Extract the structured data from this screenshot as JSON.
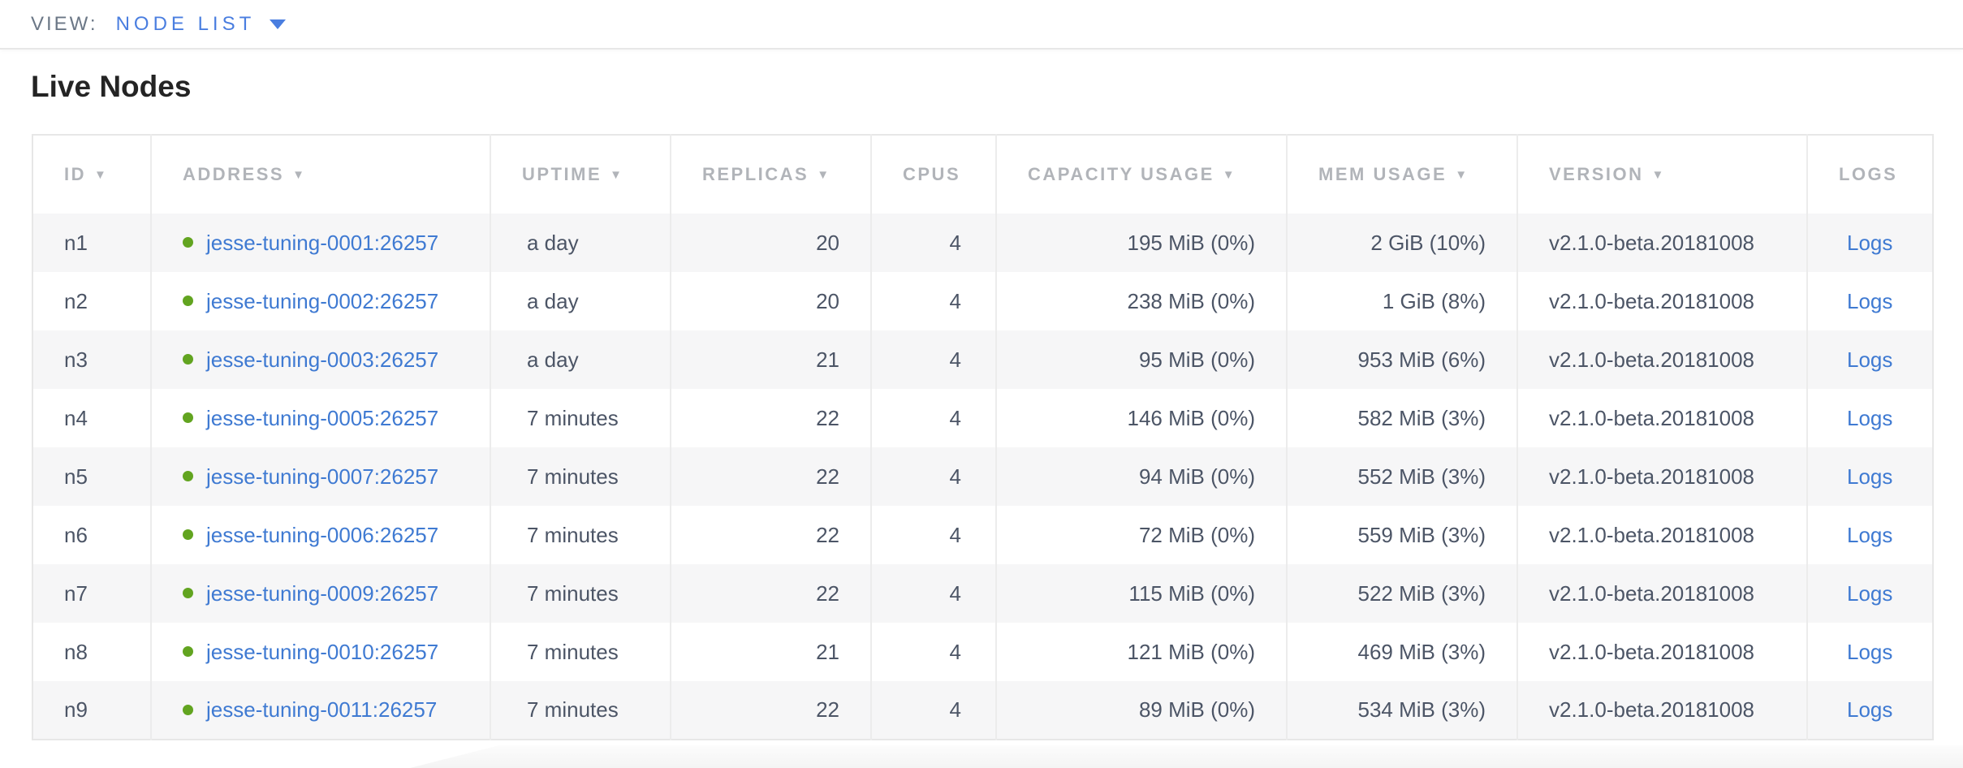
{
  "view_bar": {
    "label": "VIEW:",
    "selected": "NODE LIST"
  },
  "page": {
    "title": "Live Nodes"
  },
  "icons": {
    "sort_arrow": "▼",
    "chevron_down": "caret-down",
    "live_status": "green-dot"
  },
  "colors": {
    "accent_blue": "#4a7ee0",
    "link_blue": "#3f7ad2",
    "live_green": "#62a420",
    "header_gray": "#b1b4b9",
    "body_text": "#4c5566"
  },
  "table": {
    "columns": [
      {
        "key": "id",
        "label": "ID",
        "sortable": true
      },
      {
        "key": "address",
        "label": "ADDRESS",
        "sortable": true
      },
      {
        "key": "uptime",
        "label": "UPTIME",
        "sortable": true
      },
      {
        "key": "replicas",
        "label": "REPLICAS",
        "sortable": true
      },
      {
        "key": "cpus",
        "label": "CPUS",
        "sortable": false
      },
      {
        "key": "capacity",
        "label": "CAPACITY USAGE",
        "sortable": true
      },
      {
        "key": "mem",
        "label": "MEM USAGE",
        "sortable": true
      },
      {
        "key": "version",
        "label": "VERSION",
        "sortable": true
      },
      {
        "key": "logs",
        "label": "LOGS",
        "sortable": false
      }
    ],
    "rows": [
      {
        "id": "n1",
        "status": "live",
        "address": "jesse-tuning-0001:26257",
        "uptime": "a day",
        "replicas": "20",
        "cpus": "4",
        "capacity": "195 MiB (0%)",
        "mem": "2 GiB (10%)",
        "version": "v2.1.0-beta.20181008",
        "logs": "Logs"
      },
      {
        "id": "n2",
        "status": "live",
        "address": "jesse-tuning-0002:26257",
        "uptime": "a day",
        "replicas": "20",
        "cpus": "4",
        "capacity": "238 MiB (0%)",
        "mem": "1 GiB (8%)",
        "version": "v2.1.0-beta.20181008",
        "logs": "Logs"
      },
      {
        "id": "n3",
        "status": "live",
        "address": "jesse-tuning-0003:26257",
        "uptime": "a day",
        "replicas": "21",
        "cpus": "4",
        "capacity": "95 MiB (0%)",
        "mem": "953 MiB (6%)",
        "version": "v2.1.0-beta.20181008",
        "logs": "Logs"
      },
      {
        "id": "n4",
        "status": "live",
        "address": "jesse-tuning-0005:26257",
        "uptime": "7 minutes",
        "replicas": "22",
        "cpus": "4",
        "capacity": "146 MiB (0%)",
        "mem": "582 MiB (3%)",
        "version": "v2.1.0-beta.20181008",
        "logs": "Logs"
      },
      {
        "id": "n5",
        "status": "live",
        "address": "jesse-tuning-0007:26257",
        "uptime": "7 minutes",
        "replicas": "22",
        "cpus": "4",
        "capacity": "94 MiB (0%)",
        "mem": "552 MiB (3%)",
        "version": "v2.1.0-beta.20181008",
        "logs": "Logs"
      },
      {
        "id": "n6",
        "status": "live",
        "address": "jesse-tuning-0006:26257",
        "uptime": "7 minutes",
        "replicas": "22",
        "cpus": "4",
        "capacity": "72 MiB (0%)",
        "mem": "559 MiB (3%)",
        "version": "v2.1.0-beta.20181008",
        "logs": "Logs"
      },
      {
        "id": "n7",
        "status": "live",
        "address": "jesse-tuning-0009:26257",
        "uptime": "7 minutes",
        "replicas": "22",
        "cpus": "4",
        "capacity": "115 MiB (0%)",
        "mem": "522 MiB (3%)",
        "version": "v2.1.0-beta.20181008",
        "logs": "Logs"
      },
      {
        "id": "n8",
        "status": "live",
        "address": "jesse-tuning-0010:26257",
        "uptime": "7 minutes",
        "replicas": "21",
        "cpus": "4",
        "capacity": "121 MiB (0%)",
        "mem": "469 MiB (3%)",
        "version": "v2.1.0-beta.20181008",
        "logs": "Logs"
      },
      {
        "id": "n9",
        "status": "live",
        "address": "jesse-tuning-0011:26257",
        "uptime": "7 minutes",
        "replicas": "22",
        "cpus": "4",
        "capacity": "89 MiB (0%)",
        "mem": "534 MiB (3%)",
        "version": "v2.1.0-beta.20181008",
        "logs": "Logs"
      }
    ]
  }
}
